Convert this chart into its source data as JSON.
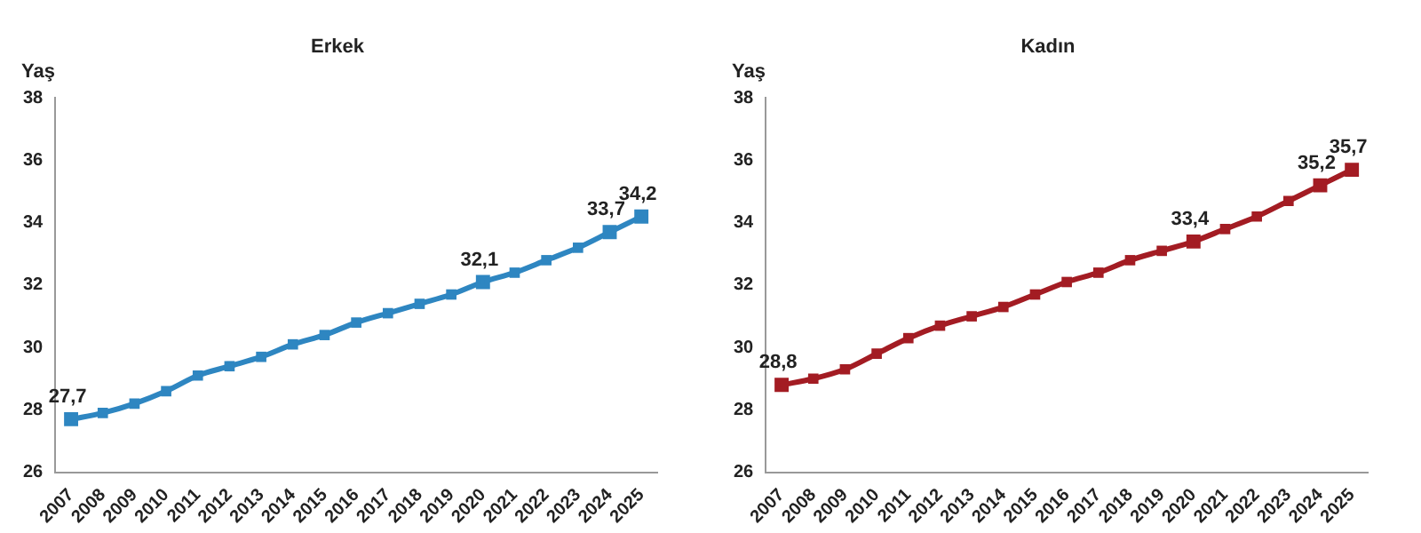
{
  "chart_data": [
    {
      "type": "line",
      "title": "Erkek",
      "ylabel": "Yaş",
      "categories": [
        "2007",
        "2008",
        "2009",
        "2010",
        "2011",
        "2012",
        "2013",
        "2014",
        "2015",
        "2016",
        "2017",
        "2018",
        "2019",
        "2020",
        "2021",
        "2022",
        "2023",
        "2024",
        "2025"
      ],
      "series": [
        {
          "color": "#2e86c1",
          "values": [
            27.7,
            27.9,
            28.2,
            28.6,
            29.1,
            29.4,
            29.7,
            30.1,
            30.4,
            30.8,
            31.1,
            31.4,
            31.7,
            32.1,
            32.4,
            32.8,
            33.2,
            33.7,
            34.2
          ],
          "value_labels": [
            "27,7",
            null,
            null,
            null,
            null,
            null,
            null,
            null,
            null,
            null,
            null,
            null,
            null,
            "32,1",
            null,
            null,
            null,
            "33,7",
            "34,2"
          ]
        }
      ],
      "ylim": [
        26,
        38
      ],
      "yticks": [
        26,
        28,
        30,
        32,
        34,
        36,
        38
      ],
      "grid": false,
      "legend": false,
      "marker": "square",
      "line_style": "solid"
    },
    {
      "type": "line",
      "title": "Kadın",
      "ylabel": "Yaş",
      "categories": [
        "2007",
        "2008",
        "2009",
        "2010",
        "2011",
        "2012",
        "2013",
        "2014",
        "2015",
        "2016",
        "2017",
        "2018",
        "2019",
        "2020",
        "2021",
        "2022",
        "2023",
        "2024",
        "2025"
      ],
      "series": [
        {
          "color": "#a31c23",
          "values": [
            28.8,
            29.0,
            29.3,
            29.8,
            30.3,
            30.7,
            31.0,
            31.3,
            31.7,
            32.1,
            32.4,
            32.8,
            33.1,
            33.4,
            33.8,
            34.2,
            34.7,
            35.2,
            35.7
          ],
          "value_labels": [
            "28,8",
            null,
            null,
            null,
            null,
            null,
            null,
            null,
            null,
            null,
            null,
            null,
            null,
            "33,4",
            null,
            null,
            null,
            "35,2",
            "35,7"
          ]
        }
      ],
      "ylim": [
        26,
        38
      ],
      "yticks": [
        26,
        28,
        30,
        32,
        34,
        36,
        38
      ],
      "grid": false,
      "legend": false,
      "marker": "square",
      "line_style": "solid"
    }
  ]
}
